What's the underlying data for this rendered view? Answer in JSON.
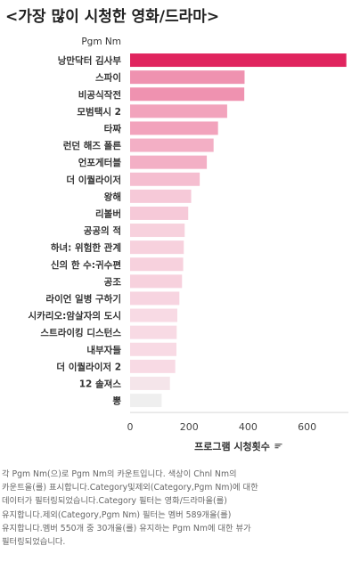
{
  "title": "<가장 많이 시청한 영화/드라마>",
  "chart_data": {
    "type": "bar",
    "orientation": "horizontal",
    "row_field_label": "Pgm Nm",
    "xlabel": "프로그램 시청횟수",
    "xlim": [
      0,
      740
    ],
    "xticks": [
      0,
      200,
      400,
      600
    ],
    "categories": [
      "낭만닥터 김사부",
      "스파이",
      "비공식작전",
      "모범택시 2",
      "타짜",
      "런던 해즈 폴른",
      "언포게터블",
      "더 이퀄라이저",
      "왕해",
      "리볼버",
      "공공의 적",
      "하녀: 위험한 관계",
      "신의 한 수:귀수편",
      "공조",
      "라이언 일병 구하기",
      "시카리오:암살자의 도시",
      "스트라이킹 디스턴스",
      "내부자들",
      "더 이퀄라이저 2",
      "12 솔져스",
      "뽕"
    ],
    "values": [
      733,
      388,
      387,
      329,
      298,
      283,
      260,
      236,
      207,
      197,
      185,
      182,
      180,
      176,
      167,
      160,
      158,
      157,
      153,
      135,
      107
    ],
    "colors": [
      "#e0245e",
      "#ef92b0",
      "#ef92b0",
      "#f2a3bc",
      "#f2a3bc",
      "#f3afc5",
      "#f3afc5",
      "#f5bed0",
      "#f6c9d8",
      "#f6c9d8",
      "#f7d1dd",
      "#f7d1dd",
      "#f7d1dd",
      "#f7d1dd",
      "#f7d4e0",
      "#f8dae4",
      "#f8dae4",
      "#f8dae4",
      "#f8dae4",
      "#f5e5ea",
      "#efefef"
    ],
    "grid": false
  },
  "caption_lines": [
    "각 Pgm Nm(으)로 Pgm Nm의 카운트입니다. 색상이 Chnl Nm의",
    "카운트을(를) 표시합니다.Category및제외(Category,Pgm Nm)에 대한",
    "데이터가 필터링되었습니다.Category 필터는 영화/드라마을(를)",
    "유지합니다.제외(Category,Pgm Nm) 필터는 멤버 589개을(를)",
    "유지합니다.멤버 550개 중 30개을(를) 유지하는 Pgm Nm에 대한 뷰가",
    "필터링되었습니다."
  ]
}
